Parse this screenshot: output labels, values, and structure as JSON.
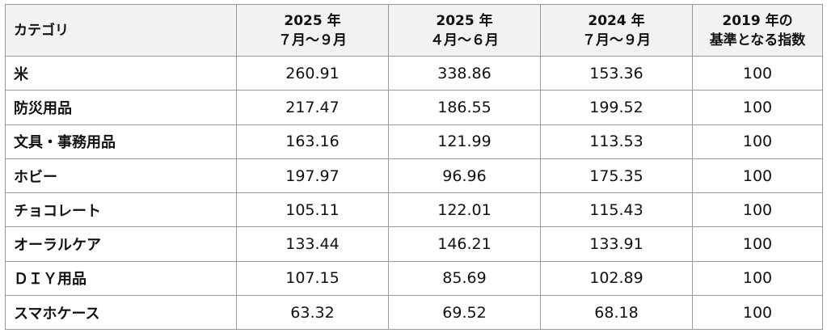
{
  "table": {
    "header": [
      [
        "カテゴリ"
      ],
      [
        "2025 年",
        "７月～９月"
      ],
      [
        "2025 年",
        "４月～６月"
      ],
      [
        "2024 年",
        "７月～９月"
      ],
      [
        "2019 年の",
        "基準となる指数"
      ]
    ],
    "rows": [
      [
        "米",
        "260.91",
        "338.86",
        "153.36",
        "100"
      ],
      [
        "防災用品",
        "217.47",
        "186.55",
        "199.52",
        "100"
      ],
      [
        "文具・事務用品",
        "163.16",
        "121.99",
        "113.53",
        "100"
      ],
      [
        "ホビー",
        "197.97",
        "96.96",
        "175.35",
        "100"
      ],
      [
        "チョコレート",
        "105.11",
        "122.01",
        "115.43",
        "100"
      ],
      [
        "オーラルケア",
        "133.44",
        "146.21",
        "133.91",
        "100"
      ],
      [
        "ＤＩＹ用品",
        "107.15",
        "85.69",
        "102.89",
        "100"
      ],
      [
        "スマホケース",
        "63.32",
        "69.52",
        "68.18",
        "100"
      ]
    ]
  }
}
